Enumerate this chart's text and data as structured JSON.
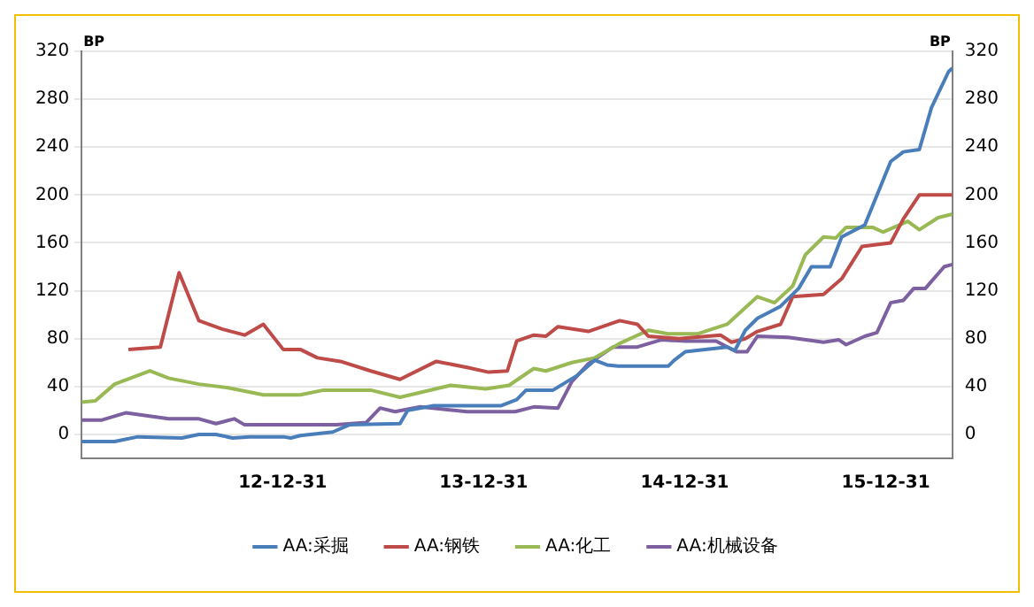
{
  "chart_data": {
    "type": "line",
    "ylabel": "BP",
    "y2label": "BP",
    "xlim": [
      "2012-01-01",
      "2016-04-30"
    ],
    "xticks": [
      {
        "value": "2012-12-31",
        "label": "12-12-31"
      },
      {
        "value": "2013-12-31",
        "label": "13-12-31"
      },
      {
        "value": "2014-12-31",
        "label": "14-12-31"
      },
      {
        "value": "2015-12-31",
        "label": "15-12-31"
      }
    ],
    "ylim": [
      -20,
      320
    ],
    "yticks": [
      0,
      40,
      80,
      120,
      160,
      200,
      240,
      280,
      320
    ],
    "y2lim": [
      -20,
      320
    ],
    "y2ticks": [
      0,
      40,
      80,
      120,
      160,
      200,
      240,
      280,
      320
    ],
    "grid": "y",
    "legend": "bottom",
    "marker": "none",
    "line_style": "solid",
    "series": [
      {
        "name": "AA:采掘",
        "color": "#4a7ebb",
        "x": [
          "2012-01-01",
          "2012-03-01",
          "2012-04-12",
          "2012-07-01",
          "2012-08-01",
          "2012-09-01",
          "2012-10-01",
          "2012-11-01",
          "2013-01-01",
          "2013-01-15",
          "2013-02-01",
          "2013-04-01",
          "2013-05-01",
          "2013-08-01",
          "2013-08-15",
          "2013-10-01",
          "2014-02-01",
          "2014-03-01",
          "2014-03-18",
          "2014-05-06",
          "2014-06-18",
          "2014-07-21",
          "2014-08-12",
          "2014-09-01",
          "2014-12-01",
          "2014-12-12",
          "2015-01-01",
          "2015-03-18",
          "2015-04-01",
          "2015-04-20",
          "2015-05-12",
          "2015-06-23",
          "2015-07-26",
          "2015-08-18",
          "2015-09-21",
          "2015-10-12",
          "2015-11-23",
          "2016-01-09",
          "2016-02-01",
          "2016-03-01",
          "2016-03-23",
          "2016-04-23",
          "2016-04-30"
        ],
        "values": [
          -6,
          -6,
          -2,
          -3,
          0,
          0,
          -3,
          -2,
          -2,
          -3,
          -1,
          2,
          8,
          9,
          20,
          24,
          24,
          29,
          37,
          37,
          49,
          62,
          58,
          57,
          57,
          62,
          69,
          73,
          70,
          87,
          97,
          107,
          122,
          140,
          140,
          165,
          175,
          228,
          236,
          238,
          273,
          303,
          306
        ]
      },
      {
        "name": "AA:钢铁",
        "color": "#be4b48",
        "x": [
          "2012-03-26",
          "2012-05-23",
          "2012-06-26",
          "2012-08-01",
          "2012-09-12",
          "2012-10-23",
          "2012-11-26",
          "2013-01-01",
          "2013-02-01",
          "2013-03-04",
          "2013-04-15",
          "2013-06-09",
          "2013-08-01",
          "2013-10-06",
          "2013-12-01",
          "2014-01-09",
          "2014-02-12",
          "2014-03-01",
          "2014-04-01",
          "2014-04-23",
          "2014-05-15",
          "2014-07-09",
          "2014-09-04",
          "2014-10-06",
          "2014-10-26",
          "2014-12-20",
          "2015-03-06",
          "2015-03-26",
          "2015-04-20",
          "2015-05-12",
          "2015-06-23",
          "2015-07-15",
          "2015-09-09",
          "2015-10-12",
          "2015-11-18",
          "2016-01-09",
          "2016-02-01",
          "2016-03-01",
          "2016-04-30"
        ],
        "values": [
          71,
          73,
          135,
          95,
          88,
          83,
          92,
          71,
          71,
          64,
          61,
          53,
          46,
          61,
          56,
          52,
          53,
          78,
          83,
          82,
          90,
          86,
          95,
          92,
          82,
          80,
          83,
          77,
          80,
          86,
          92,
          115,
          117,
          130,
          157,
          160,
          180,
          200,
          200
        ]
      },
      {
        "name": "AA:化工",
        "color": "#98b954",
        "x": [
          "2012-01-01",
          "2012-01-26",
          "2012-03-01",
          "2012-05-04",
          "2012-06-07",
          "2012-08-01",
          "2012-09-23",
          "2012-11-26",
          "2013-02-01",
          "2013-03-15",
          "2013-06-09",
          "2013-08-01",
          "2013-11-01",
          "2014-01-04",
          "2014-02-15",
          "2014-04-01",
          "2014-04-23",
          "2014-06-09",
          "2014-07-21",
          "2014-09-04",
          "2014-10-26",
          "2014-12-01",
          "2015-01-23",
          "2015-03-18",
          "2015-05-12",
          "2015-06-12",
          "2015-07-15",
          "2015-08-07",
          "2015-09-09",
          "2015-10-01",
          "2015-10-20",
          "2015-12-07",
          "2015-12-26",
          "2016-02-09",
          "2016-03-01",
          "2016-04-04",
          "2016-04-30"
        ],
        "values": [
          27,
          28,
          42,
          53,
          47,
          42,
          39,
          33,
          33,
          37,
          37,
          31,
          41,
          38,
          41,
          55,
          53,
          60,
          64,
          76,
          87,
          84,
          84,
          92,
          115,
          110,
          124,
          150,
          165,
          164,
          173,
          173,
          169,
          178,
          171,
          181,
          184
        ]
      },
      {
        "name": "AA:机械设备",
        "color": "#7d60a0",
        "x": [
          "2012-01-01",
          "2012-02-07",
          "2012-03-21",
          "2012-06-07",
          "2012-08-01",
          "2012-09-01",
          "2012-10-04",
          "2012-10-23",
          "2013-04-07",
          "2013-06-01",
          "2013-06-26",
          "2013-07-23",
          "2013-09-07",
          "2013-12-01",
          "2014-02-26",
          "2014-04-01",
          "2014-05-15",
          "2014-06-09",
          "2014-07-09",
          "2014-08-23",
          "2014-10-06",
          "2014-11-18",
          "2015-01-01",
          "2015-02-26",
          "2015-04-04",
          "2015-04-23",
          "2015-05-12",
          "2015-07-07",
          "2015-09-09",
          "2015-10-07",
          "2015-10-20",
          "2015-11-23",
          "2015-12-15",
          "2016-01-09",
          "2016-02-01",
          "2016-02-20",
          "2016-03-12",
          "2016-04-15",
          "2016-04-30"
        ],
        "values": [
          12,
          12,
          18,
          13,
          13,
          9,
          13,
          8,
          8,
          10,
          22,
          19,
          23,
          19,
          19,
          23,
          22,
          44,
          59,
          73,
          73,
          79,
          78,
          78,
          69,
          69,
          82,
          81,
          77,
          79,
          75,
          82,
          85,
          110,
          112,
          122,
          122,
          140,
          142
        ]
      }
    ]
  }
}
